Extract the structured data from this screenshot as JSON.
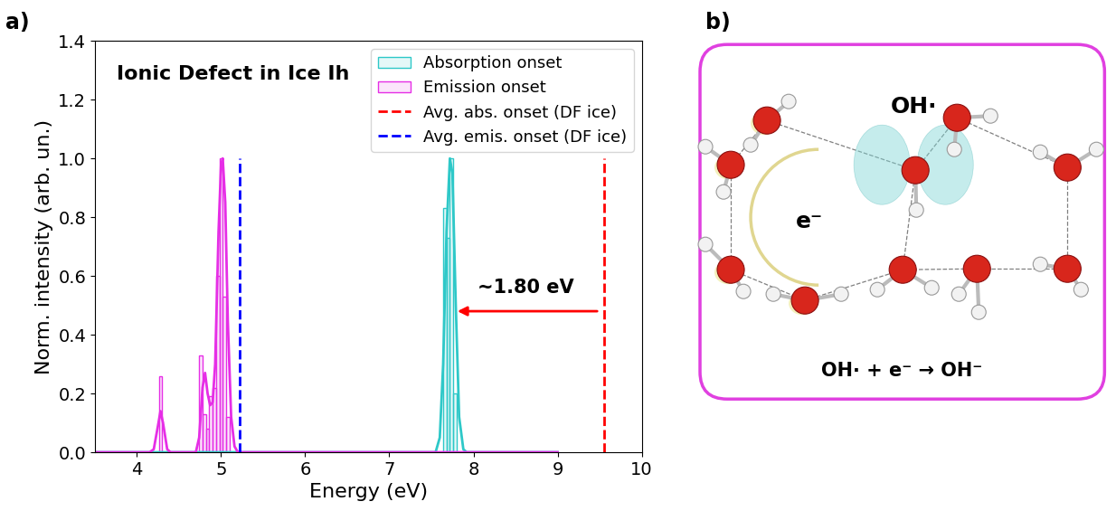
{
  "chart_data": {
    "type": "histogram",
    "panel_label": "a)",
    "title": "Ionic Defect in Ice Ih",
    "x_label": "Energy (eV)",
    "y_label": "Norm. intensity (arb. un.)",
    "xlim": [
      3.5,
      10
    ],
    "xticks": [
      4,
      5,
      6,
      7,
      8,
      9,
      10
    ],
    "ylim": [
      0,
      1.4
    ],
    "yticks": [
      {
        "value": 0,
        "label": "0.0"
      },
      {
        "value": 0.2,
        "label": "0.2"
      },
      {
        "value": 0.4,
        "label": "0.4"
      },
      {
        "value": 0.6,
        "label": "0.6"
      },
      {
        "value": 0.8,
        "label": "0.8"
      },
      {
        "value": 1.0,
        "label": "1.0"
      },
      {
        "value": 1.2,
        "label": "1.2"
      },
      {
        "value": 1.4,
        "label": "1.4"
      }
    ],
    "legend": "upper right",
    "series": [
      {
        "name": "Absorption onset",
        "type": "histogram",
        "color": "#2ec8c8",
        "bins": [
          7.64,
          7.68,
          7.72,
          7.76,
          7.8
        ],
        "counts": [
          0.83,
          0.73,
          1.0,
          0.2
        ],
        "curve": {
          "x": [
            3.5,
            7.55,
            7.6,
            7.64,
            7.68,
            7.72,
            7.75,
            7.79,
            7.83,
            7.88,
            7.92,
            9.0
          ],
          "values": [
            0,
            0,
            0.05,
            0.3,
            0.75,
            1.0,
            0.95,
            0.5,
            0.12,
            0.01,
            0,
            0
          ]
        }
      },
      {
        "name": "Emission onset",
        "type": "histogram",
        "color": "#e62ee6",
        "bins": [
          4.26,
          4.3,
          4.34,
          4.38,
          4.42,
          4.46,
          4.5,
          4.54,
          4.58,
          4.62,
          4.66,
          4.7,
          4.74,
          4.78,
          4.82,
          4.86,
          4.9,
          4.94,
          4.98,
          5.02,
          5.06,
          5.1
        ],
        "counts": [
          0.26,
          0,
          0,
          0,
          0,
          0,
          0,
          0,
          0,
          0,
          0,
          0,
          0.33,
          0.13,
          0.08,
          0.19,
          0.22,
          0.6,
          1.0,
          0.53,
          0.12
        ],
        "curve": {
          "x": [
            3.5,
            4.15,
            4.2,
            4.25,
            4.28,
            4.31,
            4.36,
            4.4,
            4.7,
            4.74,
            4.78,
            4.81,
            4.84,
            4.87,
            4.9,
            4.93,
            4.97,
            5.0,
            5.02,
            5.05,
            5.08,
            5.12,
            5.16,
            5.2,
            9.0
          ],
          "values": [
            0,
            0,
            0.01,
            0.09,
            0.14,
            0.1,
            0.01,
            0,
            0,
            0.05,
            0.22,
            0.27,
            0.2,
            0.16,
            0.17,
            0.3,
            0.75,
            0.98,
            1.0,
            0.85,
            0.45,
            0.12,
            0.02,
            0,
            0
          ]
        }
      },
      {
        "name": "Avg. abs. onset (DF ice)",
        "type": "vline",
        "color": "red",
        "line_style": "dashed",
        "x": 9.55,
        "y_range": [
          0,
          1.0
        ]
      },
      {
        "name": "Avg. emis. onset (DF ice)",
        "type": "vline",
        "color": "blue",
        "line_style": "dashed",
        "x": 5.22,
        "y_range": [
          0,
          1.0
        ]
      }
    ],
    "annotations": [
      {
        "text": "~1.80 eV",
        "x": 8.62,
        "y": 0.56,
        "color": "red",
        "arrow_from": [
          9.5,
          0.48
        ],
        "arrow_to": [
          7.78,
          0.48
        ]
      }
    ]
  },
  "diagram": {
    "panel_label": "b)",
    "radical_label": "OH·",
    "electron_label": "e⁻",
    "reaction": "OH· + e⁻ → OH⁻"
  }
}
